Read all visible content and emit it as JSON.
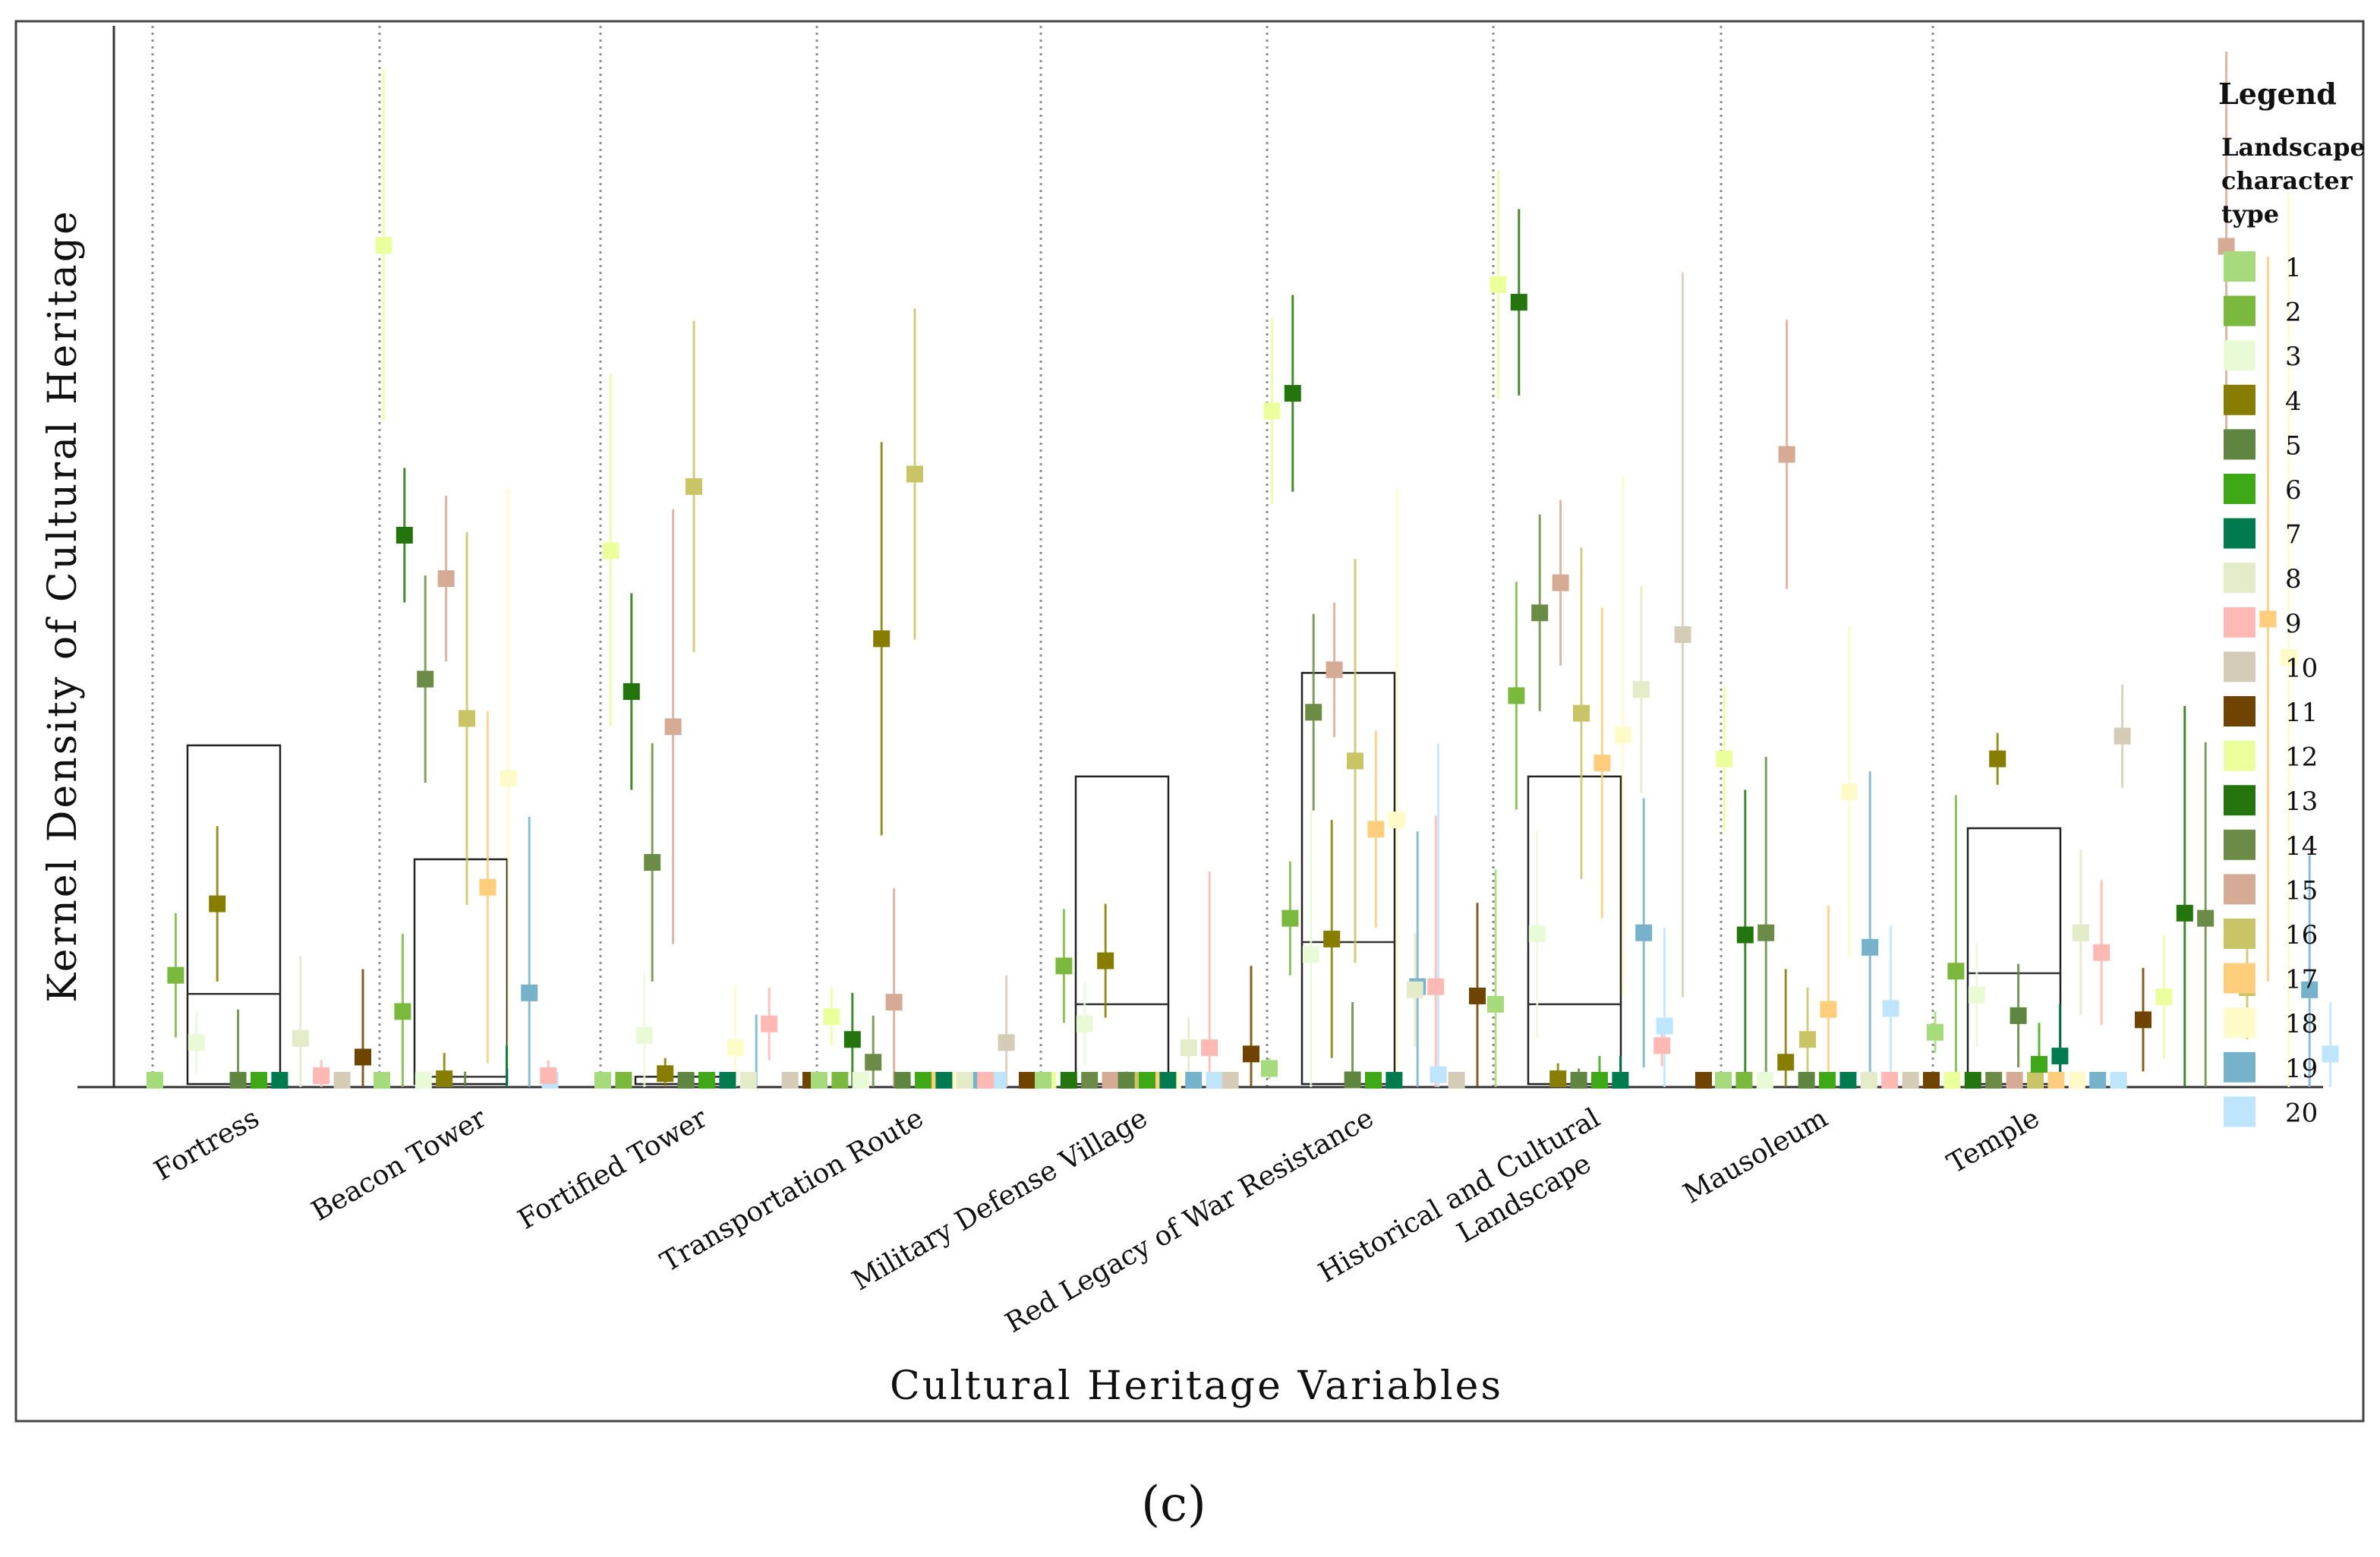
{
  "chart_data": {
    "type": "scatter",
    "title": "",
    "xlabel": "Cultural Heritage Variables",
    "ylabel": "Kernel Density of Cultural Heritage",
    "ylim": [
      0,
      1
    ],
    "caption": "(c)",
    "legend": {
      "title": "Legend",
      "subtitle": [
        "Landscape",
        "character",
        "type"
      ],
      "entries": [
        {
          "label": "1",
          "color": "#a6db7d"
        },
        {
          "label": "2",
          "color": "#7bb83e"
        },
        {
          "label": "3",
          "color": "#e9fad7"
        },
        {
          "label": "4",
          "color": "#877d00"
        },
        {
          "label": "5",
          "color": "#5f8640"
        },
        {
          "label": "6",
          "color": "#3fa816"
        },
        {
          "label": "7",
          "color": "#007b4f"
        },
        {
          "label": "8",
          "color": "#e3ebc8"
        },
        {
          "label": "9",
          "color": "#ffb9b4"
        },
        {
          "label": "10",
          "color": "#d5ccb7"
        },
        {
          "label": "11",
          "color": "#6f4400"
        },
        {
          "label": "12",
          "color": "#ebff9c"
        },
        {
          "label": "13",
          "color": "#24750d"
        },
        {
          "label": "14",
          "color": "#6b8b46"
        },
        {
          "label": "15",
          "color": "#d6ab96"
        },
        {
          "label": "16",
          "color": "#c9c566"
        },
        {
          "label": "17",
          "color": "#fece7c"
        },
        {
          "label": "18",
          "color": "#fffbc8"
        },
        {
          "label": "19",
          "color": "#76b2c9"
        },
        {
          "label": "20",
          "color": "#bfe5fd"
        }
      ]
    },
    "categories": [
      {
        "name": "Fortress",
        "label_lines": [
          "Fortress"
        ],
        "box": {
          "lo": 0.0,
          "median": 0.09,
          "hi": 0.33
        },
        "means": [
          0.005,
          0.108,
          0.043,
          0.177,
          0.0,
          0.0,
          0.0,
          0.047,
          0.011,
          0.0,
          0.029,
          0.813,
          0.533,
          0.394,
          0.491,
          0.356,
          0.193,
          0.298,
          0.091,
          0.0
        ],
        "errors": [
          0.008,
          0.06,
          0.03,
          0.075,
          0.075,
          0.0,
          0.0,
          0.08,
          0.015,
          0.0,
          0.085,
          0.17,
          0.065,
          0.1,
          0.08,
          0.18,
          0.17,
          0.28,
          0.17,
          0.0
        ]
      },
      {
        "name": "Beacon Tower",
        "label_lines": [
          "Beacon Tower"
        ],
        "box": {
          "lo": 0.0,
          "median": 0.01,
          "hi": 0.22
        },
        "means": [
          0.005,
          0.073,
          0.0,
          0.008,
          0.0,
          0.0,
          0.0,
          0.0,
          0.011,
          0.0,
          0.0,
          0.518,
          0.382,
          0.217,
          0.348,
          0.58,
          0.0,
          0.038,
          0.0,
          0.0
        ],
        "errors": [
          0.008,
          0.075,
          0.01,
          0.025,
          0.015,
          0.0,
          0.04,
          0.0,
          0.015,
          0.0,
          0.0,
          0.17,
          0.095,
          0.115,
          0.21,
          0.16,
          0.0,
          0.06,
          0.07,
          0.0
        ],
        "exclude_means": [
          2,
          5,
          6,
          7,
          8,
          10,
          11,
          17,
          19,
          20
        ]
      },
      {
        "name": "Fortified Tower",
        "label_lines": [
          "Fortified Tower"
        ],
        "box": {
          "lo": 0.0,
          "median": 0.0,
          "hi": 0.01
        },
        "means": [
          0.004,
          0.0,
          0.05,
          0.013,
          0.0,
          0.0,
          0.0,
          0.0,
          0.061,
          0.0,
          0.0,
          0.068,
          0.046,
          0.024,
          0.082,
          0.592,
          0.0,
          0.0,
          0.0,
          0.0
        ],
        "errors": [
          0.008,
          0.0,
          0.06,
          0.015,
          0.0,
          0.0,
          0.0,
          0.0,
          0.035,
          0.0,
          0.0,
          0.028,
          0.045,
          0.045,
          0.11,
          0.16,
          0.0,
          0.0,
          0.0,
          0.0
        ]
      },
      {
        "name": "Transportation Route",
        "label_lines": [
          "Transportation Route"
        ],
        "box": null,
        "means": [
          0.004,
          0.0,
          0.0,
          0.433,
          0.0,
          0.0,
          0.0,
          0.0,
          0.0,
          0.043,
          0.0,
          0.0,
          0.0,
          0.0,
          0.0,
          0.0,
          0.0,
          0.0,
          0.0,
          0.0
        ],
        "errors": [
          0.008,
          0.0,
          0.0,
          0.19,
          0.0,
          0.0,
          0.0,
          0.0,
          0.0,
          0.065,
          0.0,
          0.0,
          0.0,
          0.0,
          0.0,
          0.0,
          0.0,
          0.0,
          0.0,
          0.0
        ]
      },
      {
        "name": "Military Defense Village",
        "label_lines": [
          "Military Defense Village"
        ],
        "box": {
          "lo": 0.0,
          "median": 0.08,
          "hi": 0.3
        },
        "means": [
          0.005,
          0.117,
          0.061,
          0.122,
          0.0,
          0.0,
          0.0,
          0.038,
          0.038,
          0.0,
          0.032,
          0.653,
          0.67,
          0.362,
          0.403,
          0.315,
          0.249,
          0.258,
          0.097,
          0.012
        ],
        "errors": [
          0.008,
          0.055,
          0.04,
          0.055,
          0.015,
          0.0,
          0.0,
          0.03,
          0.17,
          0.0,
          0.085,
          0.09,
          0.095,
          0.095,
          0.065,
          0.195,
          0.095,
          0.32,
          0.15,
          0.32
        ]
      },
      {
        "name": "Red Legacy of War Resistance",
        "label_lines": [
          "Red Legacy of War Resistance"
        ],
        "box": {
          "lo": 0.0,
          "median": 0.14,
          "hi": 0.4
        },
        "means": [
          0.018,
          0.163,
          0.128,
          0.143,
          0.007,
          0.0,
          0.0,
          0.094,
          0.097,
          0.0,
          0.088,
          0.775,
          0.758,
          0.458,
          0.487,
          0.361,
          0.313,
          0.34,
          0.149,
          0.059
        ],
        "errors": [
          0.01,
          0.055,
          0.14,
          0.115,
          0.075,
          0.0,
          0.0,
          0.055,
          0.165,
          0.0,
          0.09,
          0.11,
          0.09,
          0.095,
          0.08,
          0.16,
          0.15,
          0.25,
          0.13,
          0.095
        ]
      },
      {
        "name": "Historical and Cultural Landscape",
        "label_lines": [
          "Historical and Cultural",
          "Landscape"
        ],
        "box": {
          "lo": 0.0,
          "median": 0.08,
          "hi": 0.3
        },
        "means": [
          0.08,
          0.378,
          0.148,
          0.008,
          0.003,
          0.0,
          0.0,
          0.384,
          0.04,
          0.437,
          0.0,
          0.317,
          0.147,
          0.149,
          0.611,
          0.046,
          0.075,
          0.285,
          0.135,
          0.076
        ],
        "errors": [
          0.13,
          0.11,
          0.1,
          0.015,
          0.015,
          0.03,
          0.03,
          0.1,
          0.02,
          0.35,
          0.0,
          0.07,
          0.14,
          0.17,
          0.13,
          0.05,
          0.1,
          0.16,
          0.17,
          0.08
        ]
      },
      {
        "name": "Mausoleum",
        "label_lines": [
          "Mausoleum"
        ],
        "box": null,
        "means": [
          0.005,
          0.0,
          0.0,
          0.024,
          0.0,
          0.0,
          0.0,
          0.0,
          0.0,
          0.0,
          0.0,
          0.0,
          0.0,
          0.0,
          0.0,
          0.0,
          0.0,
          0.0,
          0.0,
          0.0
        ],
        "errors": [
          0.008,
          0.01,
          0.0,
          0.09,
          0.01,
          0.0,
          0.0,
          0.0,
          0.0,
          0.0,
          0.0,
          0.0,
          0.0,
          0.0,
          0.0,
          0.0,
          0.0,
          0.0,
          0.0,
          0.0
        ]
      },
      {
        "name": "Temple",
        "label_lines": [
          "Temple"
        ],
        "box": {
          "lo": 0.0,
          "median": 0.11,
          "hi": 0.25
        },
        "means": [
          0.053,
          0.112,
          0.089,
          0.317,
          0.069,
          0.022,
          0.03,
          0.149,
          0.13,
          0.339,
          0.065,
          0.087,
          0.168,
          0.163,
          0.812,
          0.096,
          0.452,
          0.415,
          0.094,
          0.032
        ],
        "errors": [
          0.02,
          0.17,
          0.05,
          0.025,
          0.05,
          0.04,
          0.05,
          0.08,
          0.07,
          0.05,
          0.05,
          0.06,
          0.2,
          0.17,
          0.2,
          0.05,
          0.35,
          0.45,
          0.13,
          0.05
        ]
      }
    ]
  }
}
